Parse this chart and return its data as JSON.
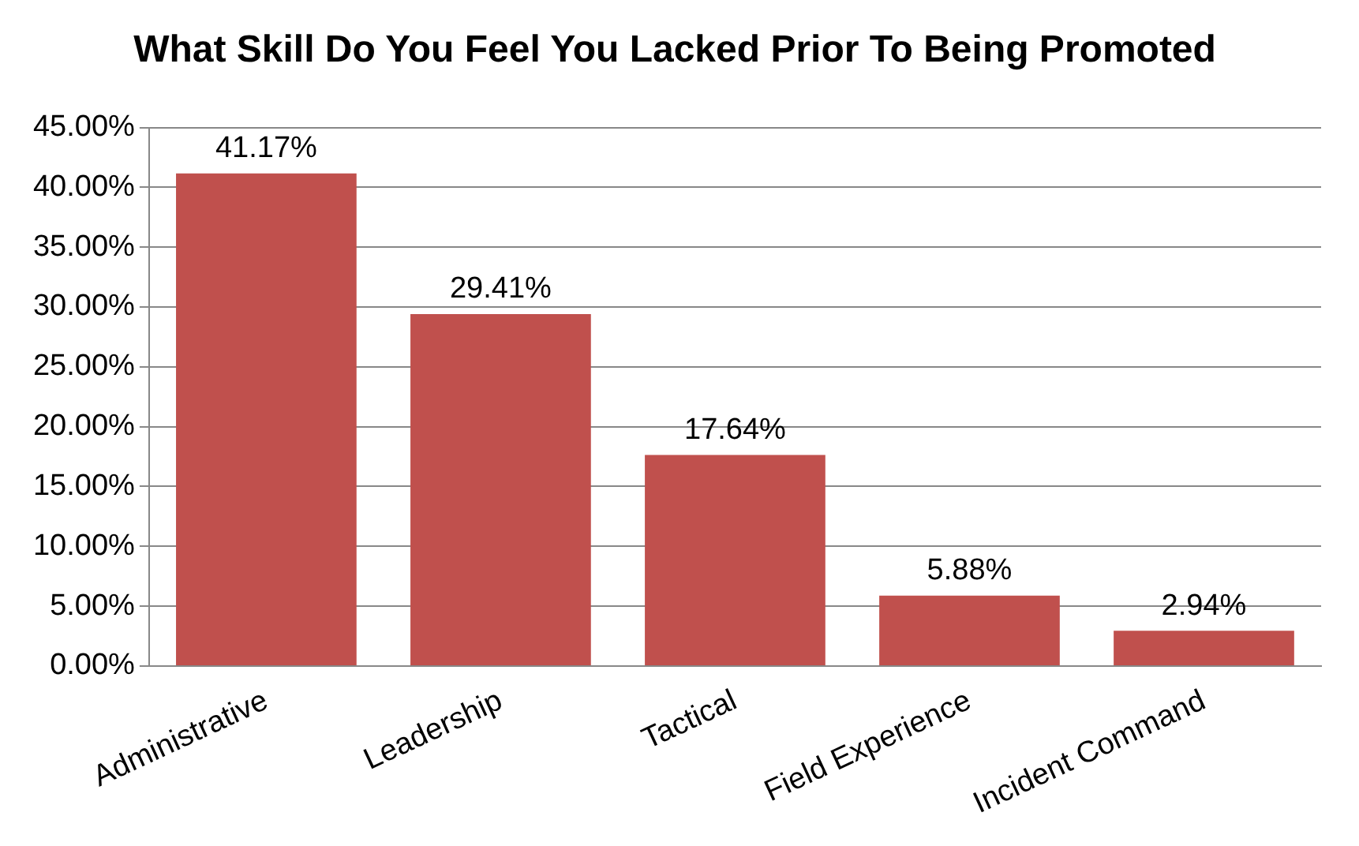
{
  "chart_data": {
    "type": "bar",
    "title": "What Skill Do You Feel You Lacked Prior To Being Promoted",
    "categories": [
      "Administrative",
      "Leadership",
      "Tactical",
      "Field Experience",
      "Incident Command"
    ],
    "values": [
      41.17,
      29.41,
      17.64,
      5.88,
      2.94
    ],
    "value_labels": [
      "41.17%",
      "29.41%",
      "17.64%",
      "5.88%",
      "2.94%"
    ],
    "color": "#c0504d",
    "ylim": [
      0,
      45
    ],
    "yticks": [
      {
        "value": 0,
        "label": "0.00%"
      },
      {
        "value": 5,
        "label": "5.00%"
      },
      {
        "value": 10,
        "label": "10.00%"
      },
      {
        "value": 15,
        "label": "15.00%"
      },
      {
        "value": 20,
        "label": "20.00%"
      },
      {
        "value": 25,
        "label": "25.00%"
      },
      {
        "value": 30,
        "label": "30.00%"
      },
      {
        "value": 35,
        "label": "35.00%"
      },
      {
        "value": 40,
        "label": "40.00%"
      },
      {
        "value": 45,
        "label": "45.00%"
      }
    ],
    "grid": "y",
    "legend": false
  }
}
